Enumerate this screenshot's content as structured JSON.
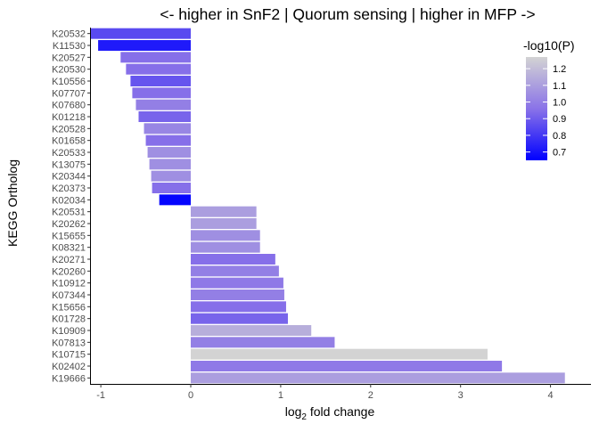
{
  "chart_data": {
    "type": "bar",
    "orientation": "horizontal",
    "title": "<- higher in SnF2 | Quorum sensing | higher in MFP ->",
    "xlabel_main": "log",
    "xlabel_sub": "2",
    "xlabel_rest": " fold change",
    "ylabel": "KEGG Ortholog",
    "xlim": [
      -1.12,
      4.45
    ],
    "x_ticks": [
      -1,
      0,
      1,
      2,
      3,
      4
    ],
    "x_tick_labels": [
      "-1",
      "0",
      "1",
      "2",
      "3",
      "4"
    ],
    "grid": false,
    "legend": {
      "title": "-log10(P)",
      "position": "top-right",
      "range": [
        0.65,
        1.27
      ],
      "ticks": [
        0.7,
        0.8,
        0.9,
        1.0,
        1.1,
        1.2
      ],
      "tick_labels": [
        "0.7",
        "0.8",
        "0.9",
        "1.0",
        "1.1",
        "1.2"
      ],
      "color_low": "#0000FF",
      "color_high": "#D3D3D3"
    },
    "categories": [
      "K20532",
      "K11530",
      "K20527",
      "K20530",
      "K10556",
      "K07707",
      "K07680",
      "K01218",
      "K20528",
      "K01658",
      "K20533",
      "K13075",
      "K20344",
      "K20373",
      "K02034",
      "K20531",
      "K20262",
      "K15655",
      "K08321",
      "K20271",
      "K20260",
      "K10912",
      "K07344",
      "K15656",
      "K01728",
      "K10909",
      "K07813",
      "K10715",
      "K02402",
      "K19666"
    ],
    "values": [
      -1.12,
      -1.03,
      -0.78,
      -0.72,
      -0.67,
      -0.65,
      -0.61,
      -0.58,
      -0.52,
      -0.5,
      -0.48,
      -0.46,
      -0.44,
      -0.43,
      -0.35,
      0.73,
      0.73,
      0.77,
      0.77,
      0.94,
      0.98,
      1.03,
      1.04,
      1.06,
      1.08,
      1.34,
      1.6,
      3.3,
      3.46,
      4.16
    ],
    "neglog10p": [
      0.85,
      0.72,
      0.95,
      0.95,
      0.88,
      0.95,
      1.0,
      0.92,
      1.02,
      0.95,
      1.05,
      1.05,
      1.05,
      0.95,
      0.66,
      1.1,
      1.1,
      1.05,
      1.05,
      0.95,
      1.0,
      0.98,
      1.0,
      0.95,
      0.92,
      1.15,
      1.0,
      1.27,
      0.98,
      1.1
    ]
  }
}
